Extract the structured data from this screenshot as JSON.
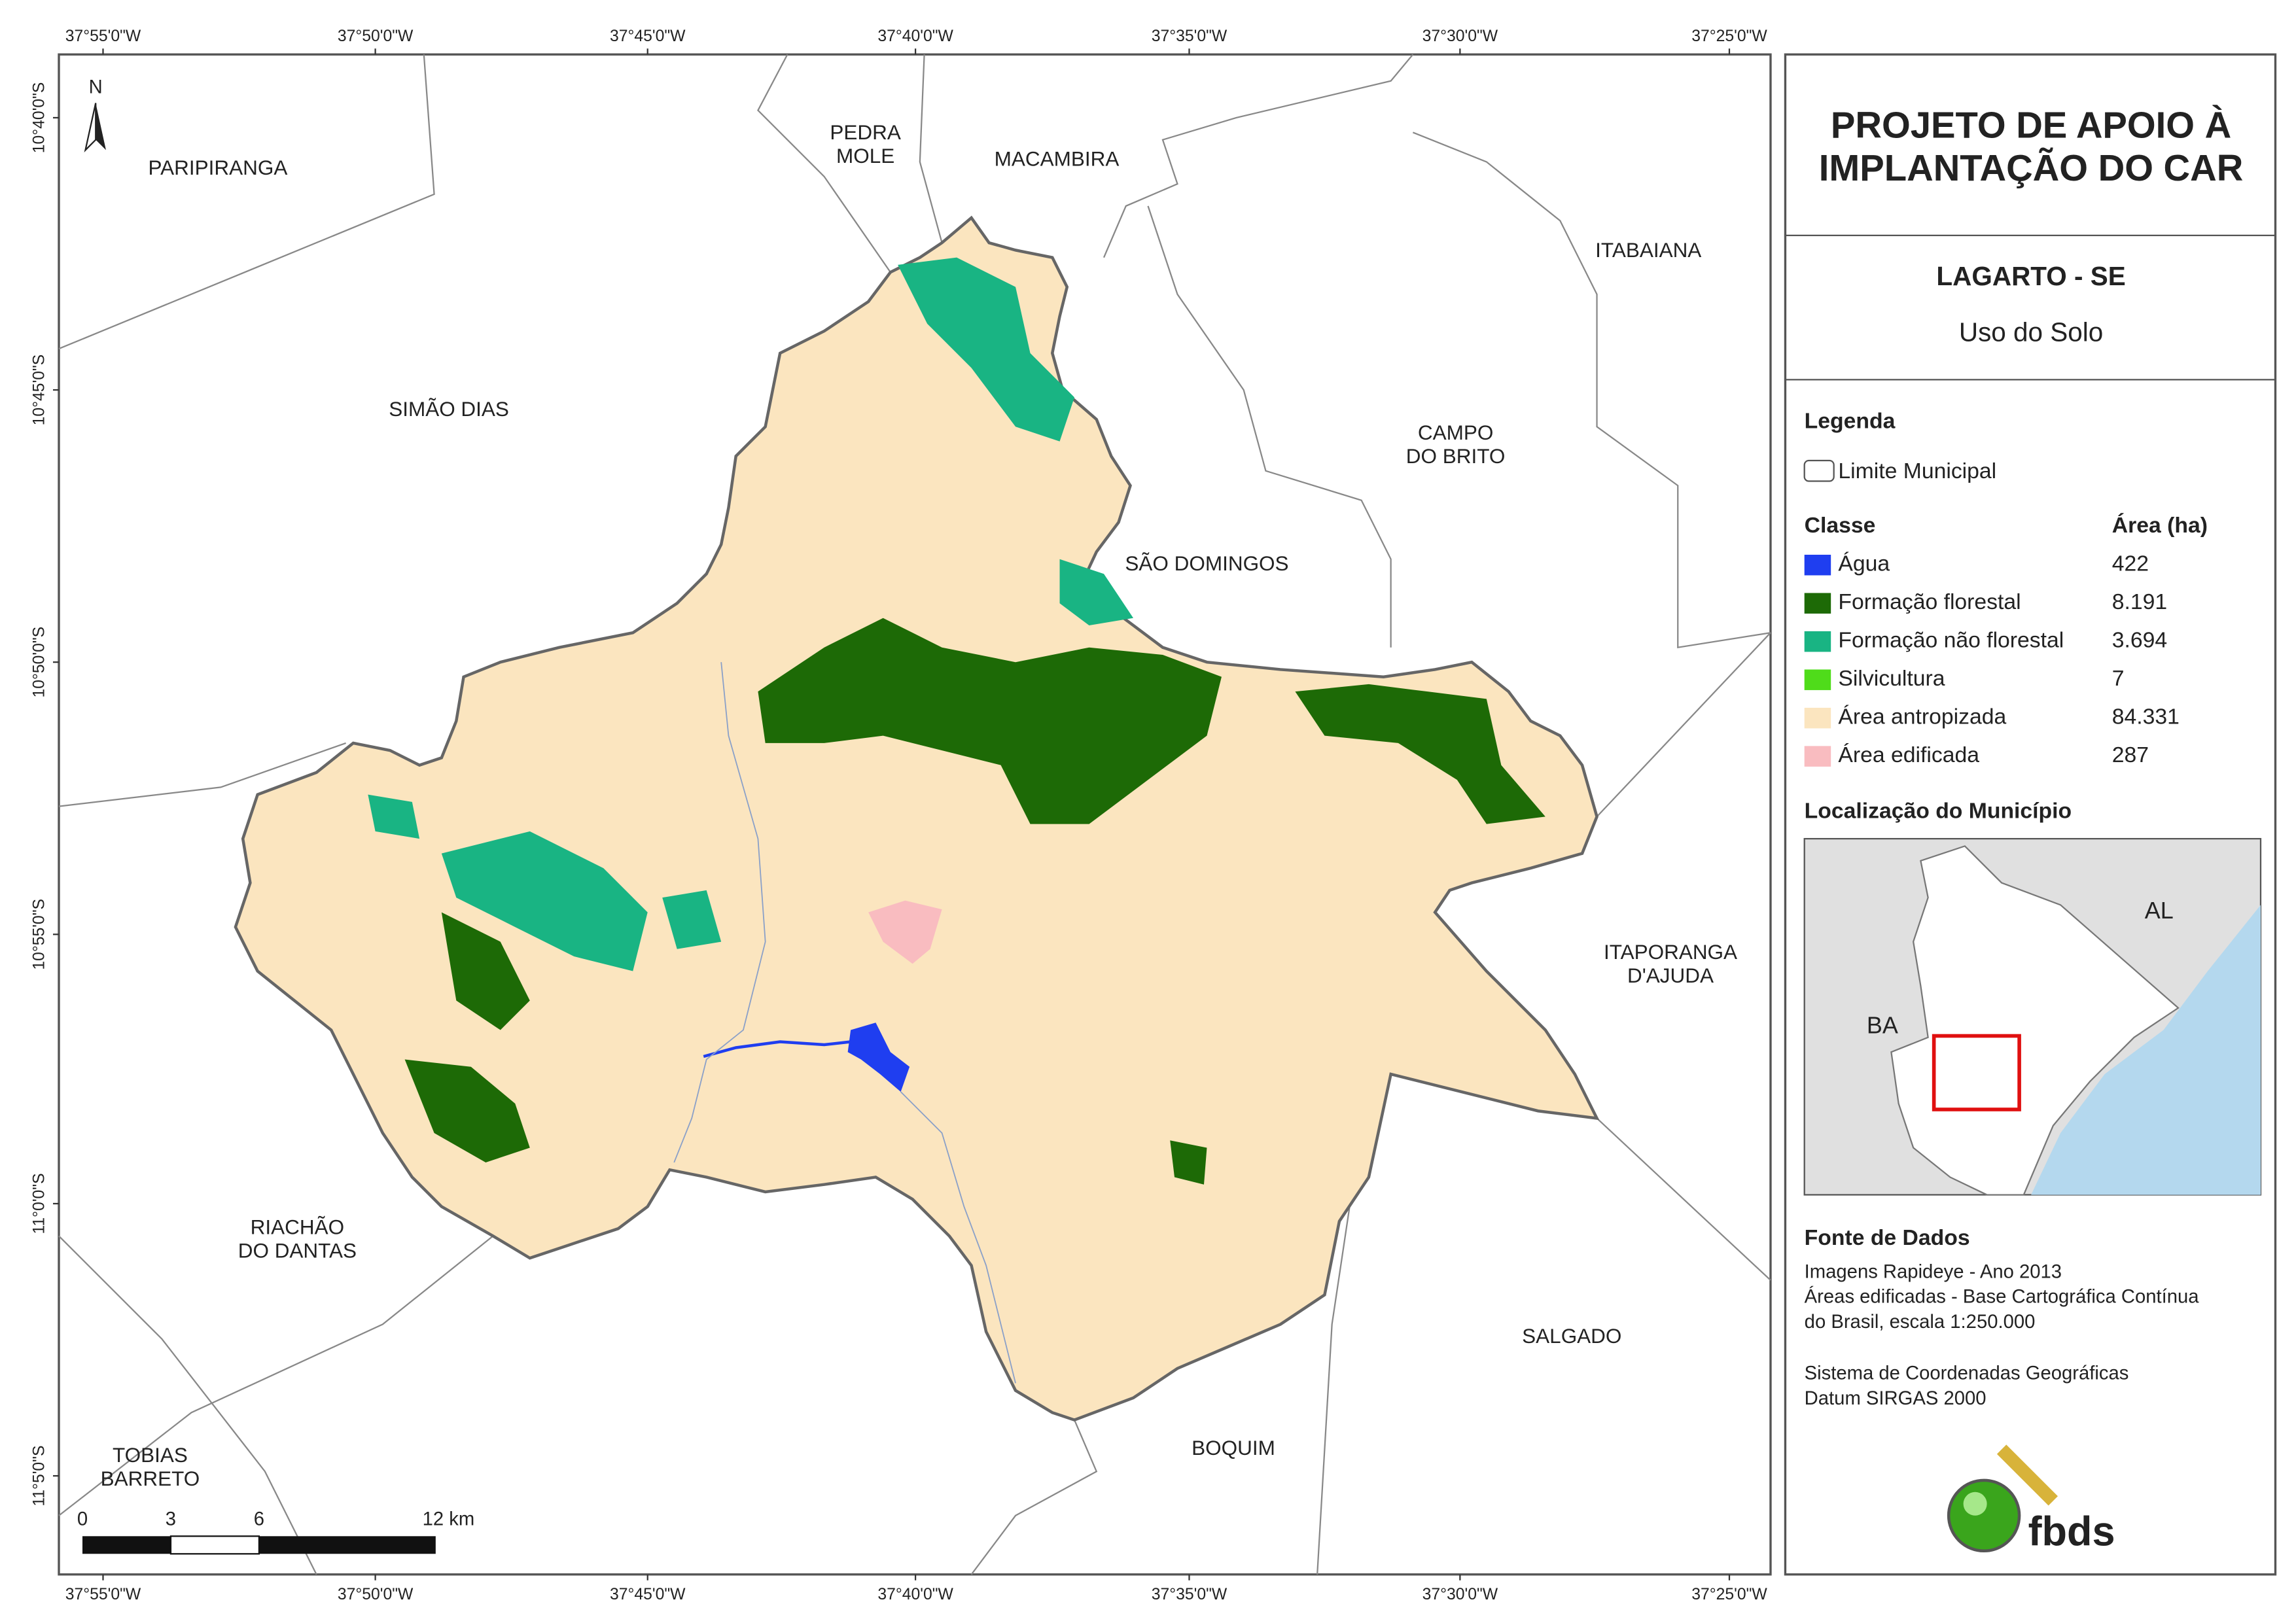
{
  "coordinates": {
    "top": [
      "37°55'0\"W",
      "37°50'0\"W",
      "37°45'0\"W",
      "37°40'0\"W",
      "37°35'0\"W",
      "37°30'0\"W",
      "37°25'0\"W"
    ],
    "bottom": [
      "37°55'0\"W",
      "37°50'0\"W",
      "37°45'0\"W",
      "37°40'0\"W",
      "37°35'0\"W",
      "37°30'0\"W",
      "37°25'0\"W"
    ],
    "left": [
      "10°40'0\"S",
      "10°45'0\"S",
      "10°50'0\"S",
      "10°55'0\"S",
      "11°0'0\"S",
      "11°5'0\"S"
    ]
  },
  "north": "N",
  "places": [
    [
      "PARIPIRANGA"
    ],
    [
      "SIMÃO DIAS"
    ],
    [
      "PEDRA",
      "MOLE"
    ],
    [
      "MACAMBIRA"
    ],
    [
      "ITABAIANA"
    ],
    [
      "CAMPO",
      "DO BRITO"
    ],
    [
      "SÃO DOMINGOS"
    ],
    [
      "ITAPORANGA",
      "D'AJUDA"
    ],
    [
      "RIACHÃO",
      "DO DANTAS"
    ],
    [
      "SALGADO"
    ],
    [
      "BOQUIM"
    ],
    [
      "TOBIAS",
      "BARRETO"
    ]
  ],
  "scale_bar": [
    "0",
    "3",
    "6",
    "12 km"
  ],
  "header": {
    "title": [
      "PROJETO DE APOIO À",
      "IMPLANTAÇÃO DO CAR"
    ],
    "municipality": "LAGARTO - SE",
    "subtitle": "Uso do Solo"
  },
  "legend": {
    "title": "Legenda",
    "boundary": "Limite Municipal",
    "class_header": "Classe",
    "area_header": "Área (ha)",
    "rows": [
      {
        "name": "Água",
        "area": "422",
        "color": "#1f3ef0"
      },
      {
        "name": "Formação florestal",
        "area": "8.191",
        "color": "#1d6a06"
      },
      {
        "name": "Formação não florestal",
        "area": "3.694",
        "color": "#19b483"
      },
      {
        "name": "Silvicultura",
        "area": "7",
        "color": "#4fdc1a"
      },
      {
        "name": "Área antropizada",
        "area": "84.331",
        "color": "#fbe5bf"
      },
      {
        "name": "Área edificada",
        "area": "287",
        "color": "#f9bcc0"
      }
    ]
  },
  "location": {
    "title": "Localização do Município",
    "labels": [
      "AL",
      "BA"
    ]
  },
  "sources": {
    "title": "Fonte de Dados",
    "lines": [
      "Imagens Rapideye - Ano 2013",
      "Áreas edificadas - Base Cartográfica Contínua",
      "do Brasil, escala 1:250.000",
      "Sistema de Coordenadas Geográficas",
      "Datum SIRGAS 2000"
    ]
  },
  "logo": {
    "text": "fbds"
  }
}
